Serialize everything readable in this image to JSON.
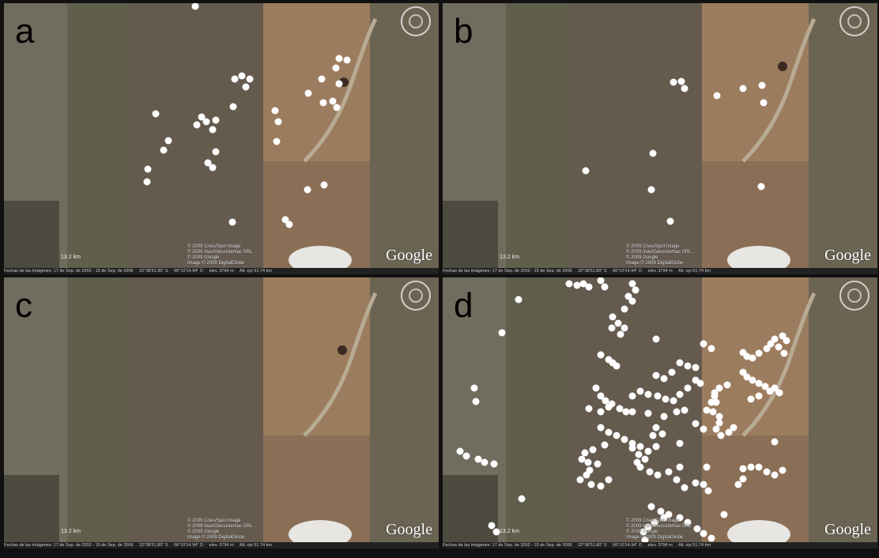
{
  "panels": [
    {
      "letter": "a",
      "google": "Google",
      "scale": "13.2 km",
      "credits": [
        "© 2009 Cnes/Spot Image",
        "© 2009 Inav/Geosistemas SRL",
        "© 2009 Google",
        "Image © 2009 DigitalGlobe"
      ],
      "status": [
        "Fechas de las imágenes: 17 de Sep. de 2002 - 15 de Sep. de 2006",
        "22°38'51.80\" S",
        "66°10'14.94\" O",
        "elev. 3794 m",
        "Alt. ojo 51.74 km"
      ]
    },
    {
      "letter": "b",
      "google": "Google",
      "scale": "13.2 km",
      "credits": [
        "© 2009 Cnes/Spot Image",
        "© 2009 Inav/Geosistemas SRL",
        "© 2009 Google",
        "Image © 2009 DigitalGlobe"
      ],
      "status": [
        "Fechas de las imágenes: 17 de Sep. de 2002 - 15 de Sep. de 2006",
        "22°38'51.80\" S",
        "66°10'14.94\" O",
        "elev. 3794 m",
        "Alt. ojo 51.74 km"
      ]
    },
    {
      "letter": "c",
      "google": "Google",
      "scale": "13.2 km",
      "credits": [
        "© 2009 Cnes/Spot Image",
        "© 2009 Inav/Geosistemas SRL",
        "© 2009 Google",
        "Image © 2009 DigitalGlobe"
      ],
      "status": [
        "Fechas de las imágenes: 17 de Sep. de 2002 - 15 de Sep. de 2006",
        "22°38'51.80\" S",
        "66°10'14.94\" O",
        "elev. 3794 m",
        "Alt. ojo 51.74 km"
      ]
    },
    {
      "letter": "d",
      "google": "Google",
      "scale": "13.2 km",
      "credits": [
        "© 2009 Cnes/Spot Image",
        "© 2009 Inav/Geosistemas SRL",
        "© 2009 Google",
        "Image © 2009 DigitalGlobe"
      ],
      "status": [
        "Fechas de las imágenes: 17 de Sep. de 2002 - 15 de Sep. de 2006",
        "22°38'51.80\" S",
        "66°10'14.94\" O",
        "elev. 3794 m",
        "Alt. ojo 51.74 km"
      ]
    }
  ],
  "colors": {
    "marker": "#ffffff",
    "dark_strip": "#5d5a4a",
    "light_strip": "#7a6a55",
    "east_block": "#9a7a5c"
  }
}
